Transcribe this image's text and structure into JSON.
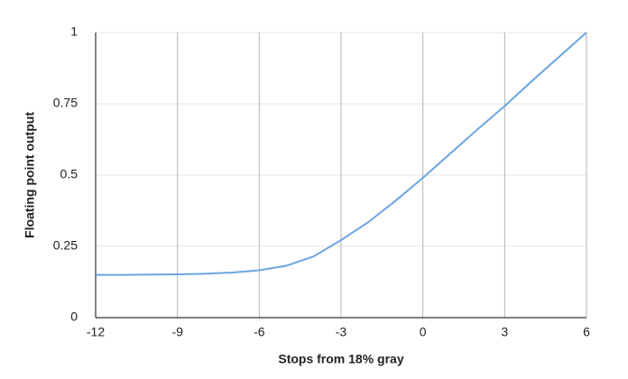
{
  "chart_data": {
    "type": "line",
    "x_label": "Stops from 18% gray",
    "y_label": "Floating point output",
    "x": [
      -12,
      -11,
      -10,
      -9,
      -8,
      -7,
      -6,
      -5,
      -4,
      -3,
      -2,
      -1,
      0,
      1,
      2,
      3,
      4,
      5,
      6
    ],
    "series": [
      {
        "color": "#6ca4e2",
        "values": [
          0.15,
          0.15,
          0.151,
          0.152,
          0.154,
          0.158,
          0.166,
          0.182,
          0.215,
          0.272,
          0.335,
          0.41,
          0.49,
          0.575,
          0.66,
          0.742,
          0.83,
          0.915,
          1.0
        ]
      }
    ],
    "xlim": [
      -12,
      6
    ],
    "xticks": [
      -12,
      -9,
      -6,
      -3,
      0,
      3,
      6
    ],
    "ylim": [
      0,
      1
    ],
    "yticks": [
      0,
      0.25,
      0.5,
      0.75,
      1
    ],
    "grid": true
  }
}
